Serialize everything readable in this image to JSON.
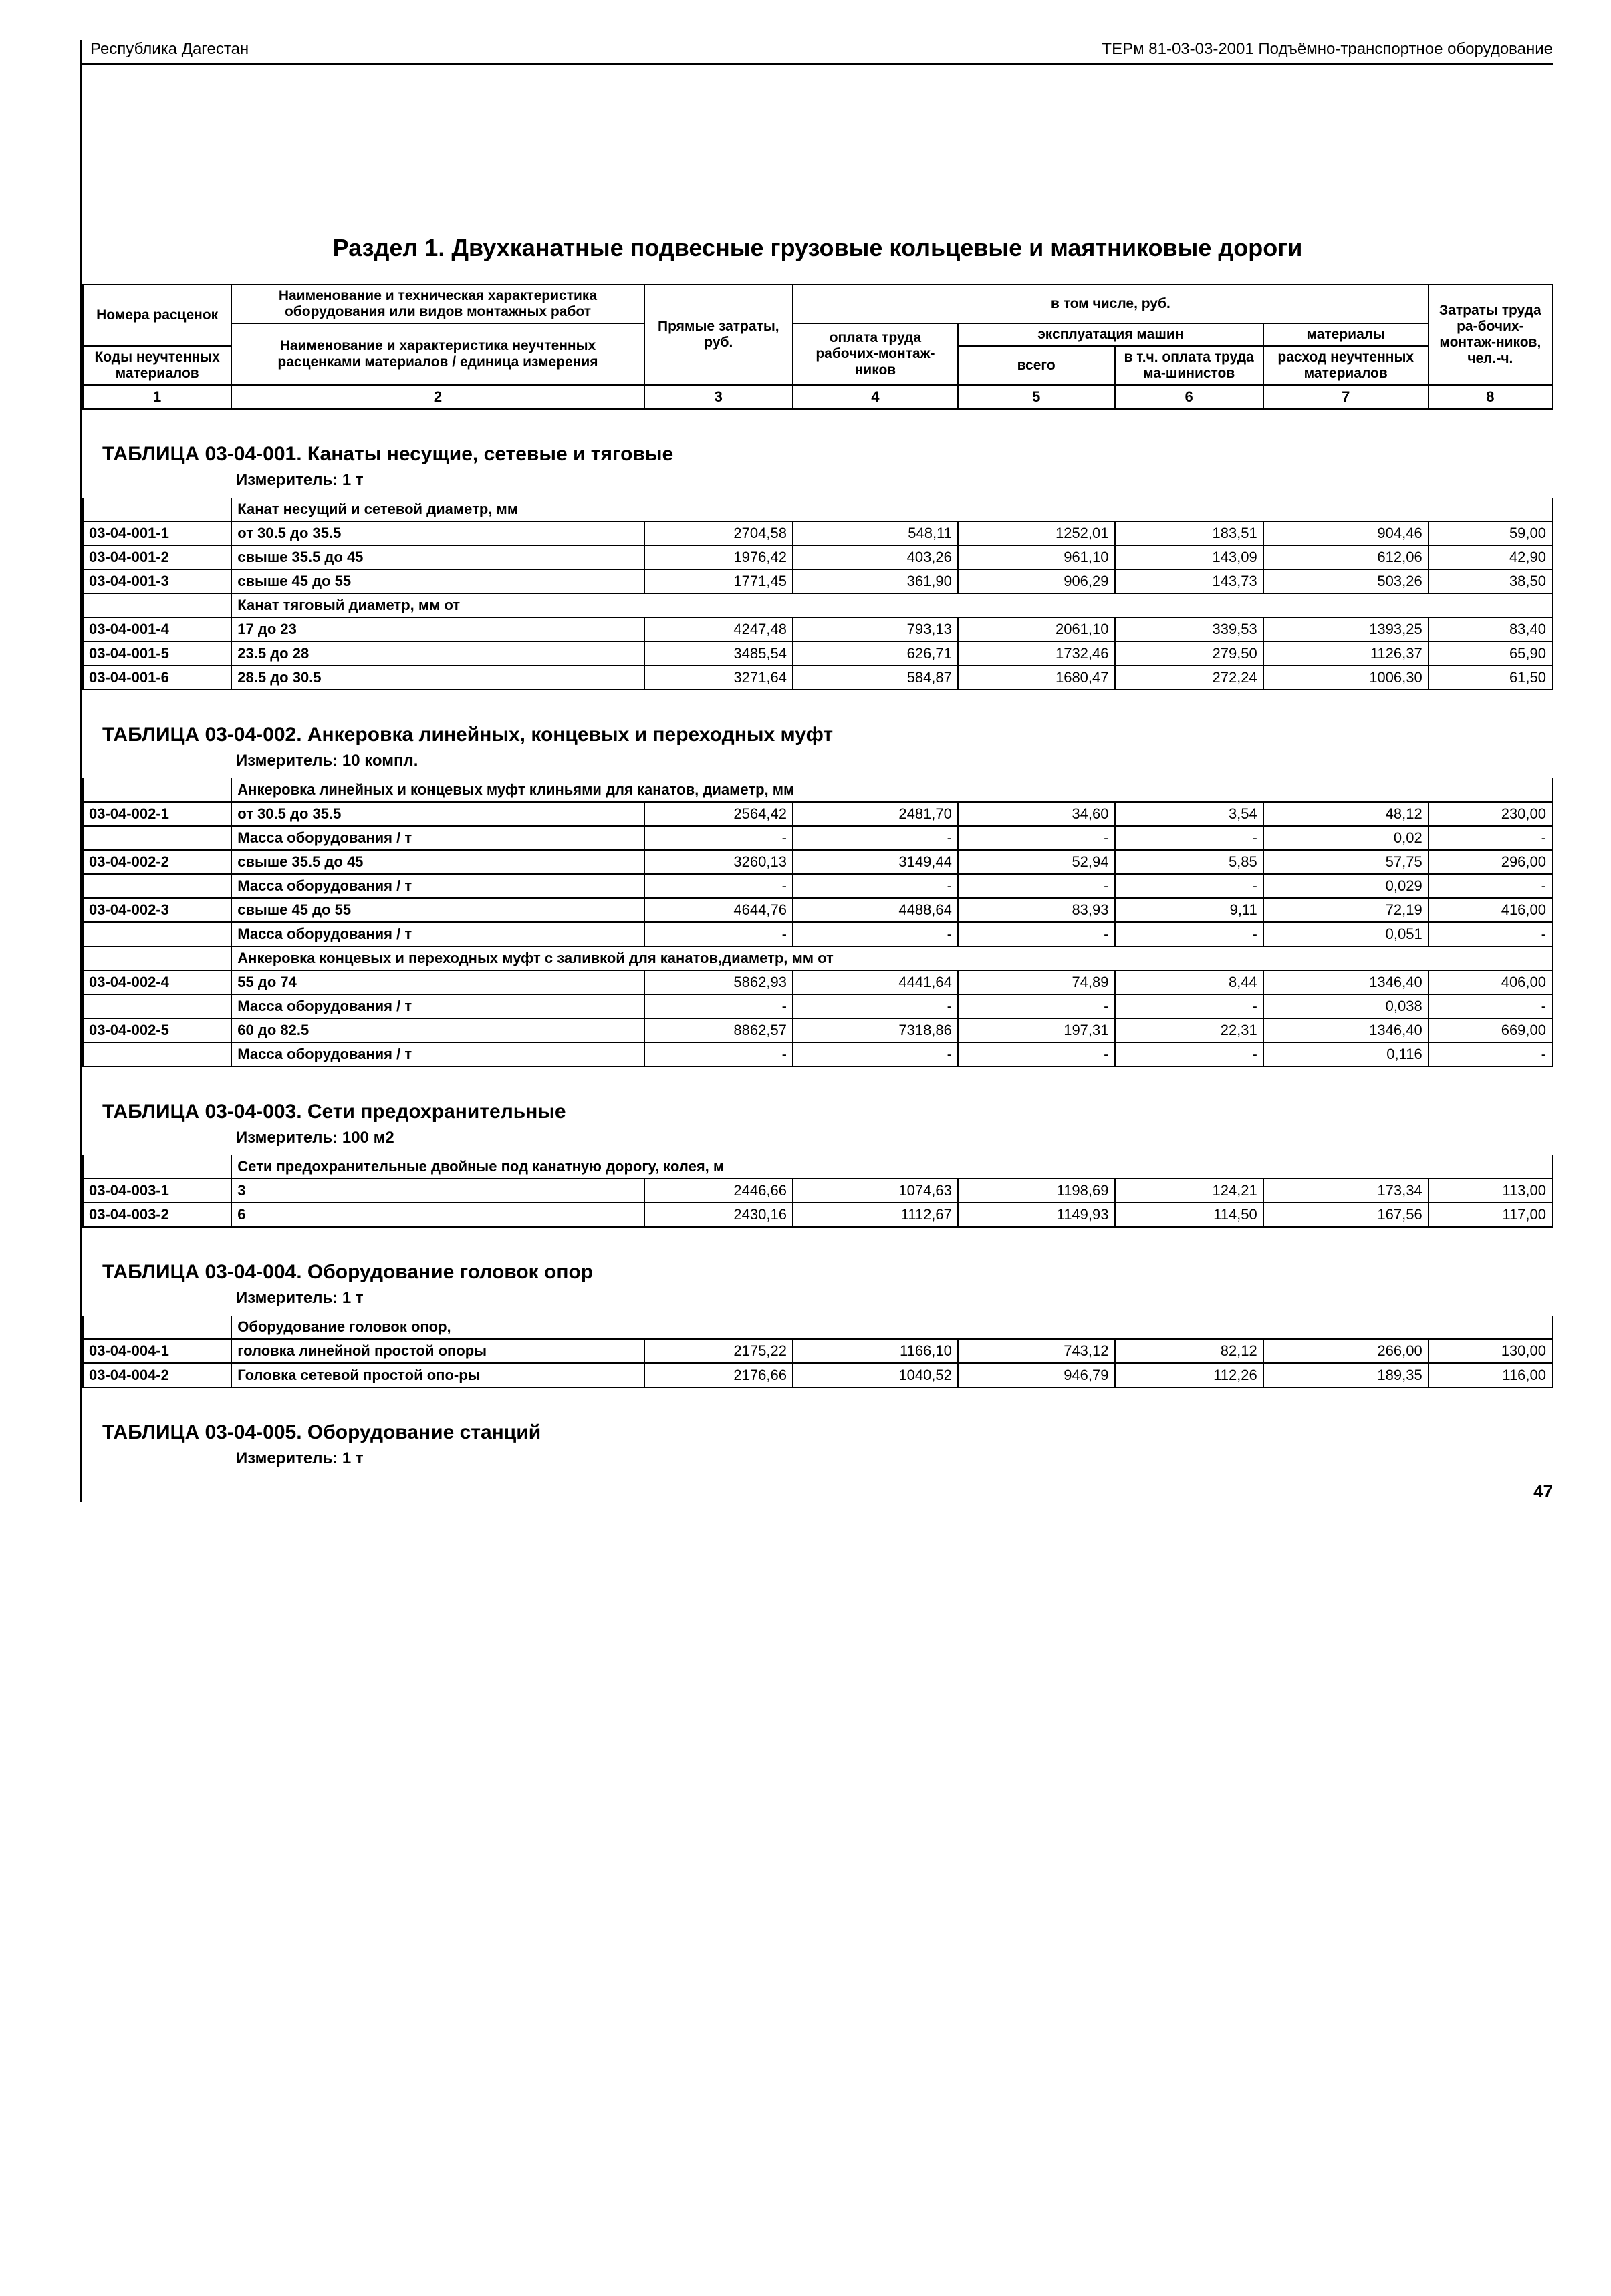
{
  "header_left": "Республика Дагестан",
  "header_right": "ТЕРм 81-03-03-2001 Подъёмно-транспортное оборудование",
  "section_title": "Раздел 1. Двухканатные подвесные грузовые кольцевые и маятниковые дороги",
  "head": {
    "r1c1": "Номера расценок",
    "r1c2": "Наименование и техническая характеристика оборудования или видов монтажных работ",
    "r1c3": "Прямые затраты, руб.",
    "r1c4_span": "в том числе, руб.",
    "r1c8": "Затраты труда ра-бочих-монтаж-ников, чел.-ч.",
    "r2c1": "Коды неучтенных материалов",
    "r2c2": "Наименование и характеристика неучтенных расценками материалов / единица измерения",
    "r2c4": "оплата труда рабочих-монтаж-ников",
    "r2c5_span": "эксплуатация машин",
    "r2c7": "материалы",
    "r3c5": "всего",
    "r3c6": "в т.ч. оплата труда ма-шинистов",
    "r3c7": "расход неучтенных материалов",
    "nums": [
      "1",
      "2",
      "3",
      "4",
      "5",
      "6",
      "7",
      "8"
    ]
  },
  "t1": {
    "title": "ТАБЛИЦА  03-04-001.  Канаты несущие, сетевые и тяговые",
    "measure": "Измеритель: 1 т",
    "g1": "Канат несущий и сетевой диаметр, мм",
    "g2": "Канат тяговый диаметр, мм от",
    "rows1": [
      [
        "03-04-001-1",
        "от 30.5 до 35.5",
        "2704,58",
        "548,11",
        "1252,01",
        "183,51",
        "904,46",
        "59,00"
      ],
      [
        "03-04-001-2",
        "свыше 35.5 до 45",
        "1976,42",
        "403,26",
        "961,10",
        "143,09",
        "612,06",
        "42,90"
      ],
      [
        "03-04-001-3",
        "свыше 45 до 55",
        "1771,45",
        "361,90",
        "906,29",
        "143,73",
        "503,26",
        "38,50"
      ]
    ],
    "rows2": [
      [
        "03-04-001-4",
        "17 до 23",
        "4247,48",
        "793,13",
        "2061,10",
        "339,53",
        "1393,25",
        "83,40"
      ],
      [
        "03-04-001-5",
        "23.5 до 28",
        "3485,54",
        "626,71",
        "1732,46",
        "279,50",
        "1126,37",
        "65,90"
      ],
      [
        "03-04-001-6",
        "28.5 до 30.5",
        "3271,64",
        "584,87",
        "1680,47",
        "272,24",
        "1006,30",
        "61,50"
      ]
    ]
  },
  "t2": {
    "title": "ТАБЛИЦА  03-04-002.  Анкеровка линейных, концевых и переходных муфт",
    "measure": "Измеритель: 10 компл.",
    "g1": "Анкеровка линейных и концевых муфт клиньями для канатов, диаметр, мм",
    "g2": "Анкеровка концевых и переходных муфт с заливкой для канатов,диаметр, мм от",
    "mass": "Масса оборудования / т",
    "rows1": [
      [
        "03-04-002-1",
        "от 30.5 до 35.5",
        "2564,42",
        "2481,70",
        "34,60",
        "3,54",
        "48,12",
        "230,00"
      ],
      [
        "",
        "Масса оборудования / т",
        "-",
        "-",
        "-",
        "-",
        "0,02",
        "-"
      ],
      [
        "03-04-002-2",
        "свыше 35.5 до 45",
        "3260,13",
        "3149,44",
        "52,94",
        "5,85",
        "57,75",
        "296,00"
      ],
      [
        "",
        "Масса оборудования / т",
        "-",
        "-",
        "-",
        "-",
        "0,029",
        "-"
      ],
      [
        "03-04-002-3",
        "свыше 45 до 55",
        "4644,76",
        "4488,64",
        "83,93",
        "9,11",
        "72,19",
        "416,00"
      ],
      [
        "",
        "Масса оборудования / т",
        "-",
        "-",
        "-",
        "-",
        "0,051",
        "-"
      ]
    ],
    "rows2": [
      [
        "03-04-002-4",
        "55 до 74",
        "5862,93",
        "4441,64",
        "74,89",
        "8,44",
        "1346,40",
        "406,00"
      ],
      [
        "",
        "Масса оборудования / т",
        "-",
        "-",
        "-",
        "-",
        "0,038",
        "-"
      ],
      [
        "03-04-002-5",
        "60 до 82.5",
        "8862,57",
        "7318,86",
        "197,31",
        "22,31",
        "1346,40",
        "669,00"
      ],
      [
        "",
        "Масса оборудования / т",
        "-",
        "-",
        "-",
        "-",
        "0,116",
        "-"
      ]
    ]
  },
  "t3": {
    "title": "ТАБЛИЦА  03-04-003.  Сети предохранительные",
    "measure": "Измеритель: 100 м2",
    "g1": "Сети предохранительные двойные под канатную дорогу, колея, м",
    "rows": [
      [
        "03-04-003-1",
        "3",
        "2446,66",
        "1074,63",
        "1198,69",
        "124,21",
        "173,34",
        "113,00"
      ],
      [
        "03-04-003-2",
        "6",
        "2430,16",
        "1112,67",
        "1149,93",
        "114,50",
        "167,56",
        "117,00"
      ]
    ]
  },
  "t4": {
    "title": "ТАБЛИЦА  03-04-004.  Оборудование головок опор",
    "measure": "Измеритель: 1 т",
    "g1": "Оборудование головок опор,",
    "rows": [
      [
        "03-04-004-1",
        "головка линейной простой опоры",
        "2175,22",
        "1166,10",
        "743,12",
        "82,12",
        "266,00",
        "130,00"
      ],
      [
        "03-04-004-2",
        "Головка сетевой простой опо-ры",
        "2176,66",
        "1040,52",
        "946,79",
        "112,26",
        "189,35",
        "116,00"
      ]
    ]
  },
  "t5": {
    "title": "ТАБЛИЦА  03-04-005.  Оборудование станций",
    "measure": "Измеритель: 1 т"
  },
  "page_number": "47"
}
